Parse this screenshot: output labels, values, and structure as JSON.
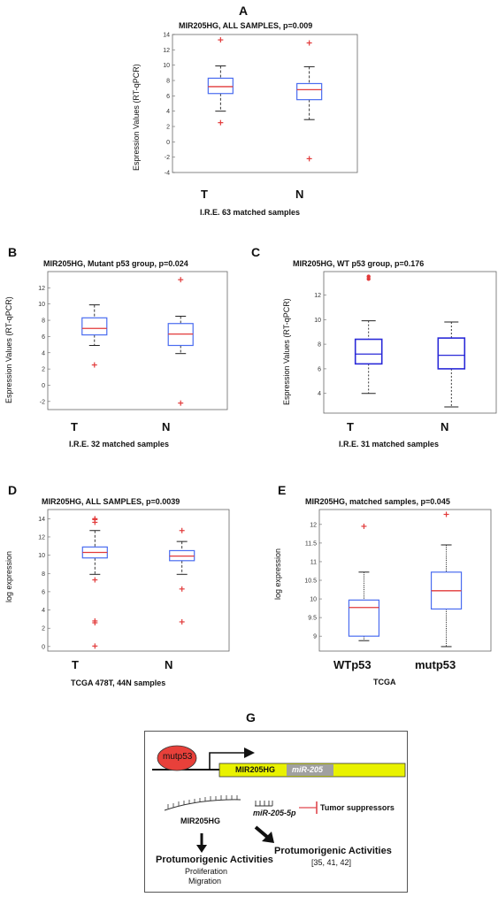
{
  "chart_data": [
    {
      "panel": "A",
      "type": "box",
      "title": "MIR205HG, ALL SAMPLES, p=0.009",
      "ylabel": "Espression Values (RT-qPCR)",
      "xlabel": "I.R.E. 63 matched samples",
      "categories": [
        "T",
        "N"
      ],
      "ylim": [
        -4,
        14
      ],
      "yticks": [
        -4,
        -2,
        0,
        2,
        4,
        6,
        8,
        10,
        12,
        14
      ],
      "style": "matlab",
      "boxes": [
        {
          "category": "T",
          "q1": 6.3,
          "median": 7.2,
          "q3": 8.3,
          "whisker_low": 4.0,
          "whisker_high": 9.9,
          "outliers": [
            13.3,
            2.5
          ]
        },
        {
          "category": "N",
          "q1": 5.5,
          "median": 6.8,
          "q3": 7.6,
          "whisker_low": 2.9,
          "whisker_high": 9.8,
          "outliers": [
            12.9,
            -2.2
          ]
        }
      ]
    },
    {
      "panel": "B",
      "type": "box",
      "title": "MIR205HG, Mutant p53 group, p=0.024",
      "ylabel": "Espression Values (RT-qPCR)",
      "xlabel": "I.R.E. 32 matched samples",
      "categories": [
        "T",
        "N"
      ],
      "ylim": [
        -3,
        14
      ],
      "yticks": [
        -2,
        0,
        2,
        4,
        6,
        8,
        10,
        12
      ],
      "style": "matlab",
      "boxes": [
        {
          "category": "T",
          "q1": 6.2,
          "median": 7.0,
          "q3": 8.3,
          "whisker_low": 4.9,
          "whisker_high": 9.9,
          "outliers": [
            2.5
          ]
        },
        {
          "category": "N",
          "q1": 4.9,
          "median": 6.3,
          "q3": 7.6,
          "whisker_low": 3.9,
          "whisker_high": 8.5,
          "outliers": [
            13.0,
            -2.2
          ]
        }
      ]
    },
    {
      "panel": "C",
      "type": "box",
      "title": "MIR205HG, WT p53 group, p=0.176",
      "ylabel": "Espression Values (RT-qPCR)",
      "xlabel": "I.R.E. 31 matched samples",
      "categories": [
        "T",
        "N"
      ],
      "ylim": [
        2.4,
        13.9
      ],
      "yticks": [
        4,
        6,
        8,
        10,
        12
      ],
      "style": "r",
      "boxes": [
        {
          "category": "T",
          "q1": 6.4,
          "median": 7.2,
          "q3": 8.4,
          "whisker_low": 4.0,
          "whisker_high": 9.9,
          "outliers": [
            13.3,
            13.5
          ]
        },
        {
          "category": "N",
          "q1": 6.0,
          "median": 7.1,
          "q3": 8.5,
          "whisker_low": 2.9,
          "whisker_high": 9.8,
          "outliers": []
        }
      ]
    },
    {
      "panel": "D",
      "type": "box",
      "title": "MIR205HG, ALL SAMPLES, p=0.0039",
      "ylabel": "log expression",
      "xlabel": "TCGA 478T, 44N samples",
      "categories": [
        "T",
        "N"
      ],
      "ylim": [
        -0.5,
        15
      ],
      "yticks": [
        0,
        2,
        4,
        6,
        8,
        10,
        12,
        14
      ],
      "style": "matlab",
      "boxes": [
        {
          "category": "T",
          "q1": 9.7,
          "median": 10.3,
          "q3": 10.9,
          "whisker_low": 7.9,
          "whisker_high": 12.7,
          "outliers": [
            13.6,
            13.9,
            14.0,
            7.3,
            2.8,
            2.6,
            0.05
          ]
        },
        {
          "category": "N",
          "q1": 9.4,
          "median": 9.9,
          "q3": 10.5,
          "whisker_low": 7.9,
          "whisker_high": 11.5,
          "outliers": [
            12.7,
            6.3,
            2.7
          ]
        }
      ]
    },
    {
      "panel": "E",
      "type": "box",
      "title": "MIR205HG, matched samples, p=0.045",
      "ylabel": "log expression",
      "xlabel": "TCGA",
      "categories": [
        "WTp53",
        "mutp53"
      ],
      "ylim": [
        8.6,
        12.4
      ],
      "yticks": [
        9,
        9.5,
        10,
        10.5,
        11,
        11.5,
        12
      ],
      "style": "matlab-dotted",
      "boxes": [
        {
          "category": "WTp53",
          "q1": 9.0,
          "median": 9.77,
          "q3": 9.97,
          "whisker_low": 8.88,
          "whisker_high": 10.72,
          "outliers": [
            11.95
          ]
        },
        {
          "category": "mutp53",
          "q1": 9.73,
          "median": 10.22,
          "q3": 10.72,
          "whisker_low": 8.72,
          "whisker_high": 11.45,
          "outliers": [
            12.27
          ]
        }
      ]
    }
  ],
  "panel_letters": {
    "A": "A",
    "B": "B",
    "C": "C",
    "D": "D",
    "E": "E",
    "G": "G"
  },
  "schema": {
    "mutp53": "mutp53",
    "gene": "MIR205HG",
    "mir": "miR-205",
    "transcript_label": "MIR205HG",
    "mir5p": "miR-205-5p",
    "tumor_suppressors": "Tumor suppressors",
    "left_activity": "Protumorigenic Activities",
    "left_detail_1": "Proliferation",
    "left_detail_2": "Migration",
    "right_activity": "Protumorigenic Activities",
    "right_refs": "[35, 41, 42]",
    "colors": {
      "oval": "#e8403a",
      "gene_box": "#e9f200",
      "mir_box": "#a0a0a0",
      "inhibit": "#e0484e"
    }
  },
  "colors": {
    "box_matlab": "#4a6cf0",
    "median": "#e23a3a",
    "outlier": "#e23a3a",
    "box_r": "#2a2ad8",
    "whisker": "#222222"
  }
}
